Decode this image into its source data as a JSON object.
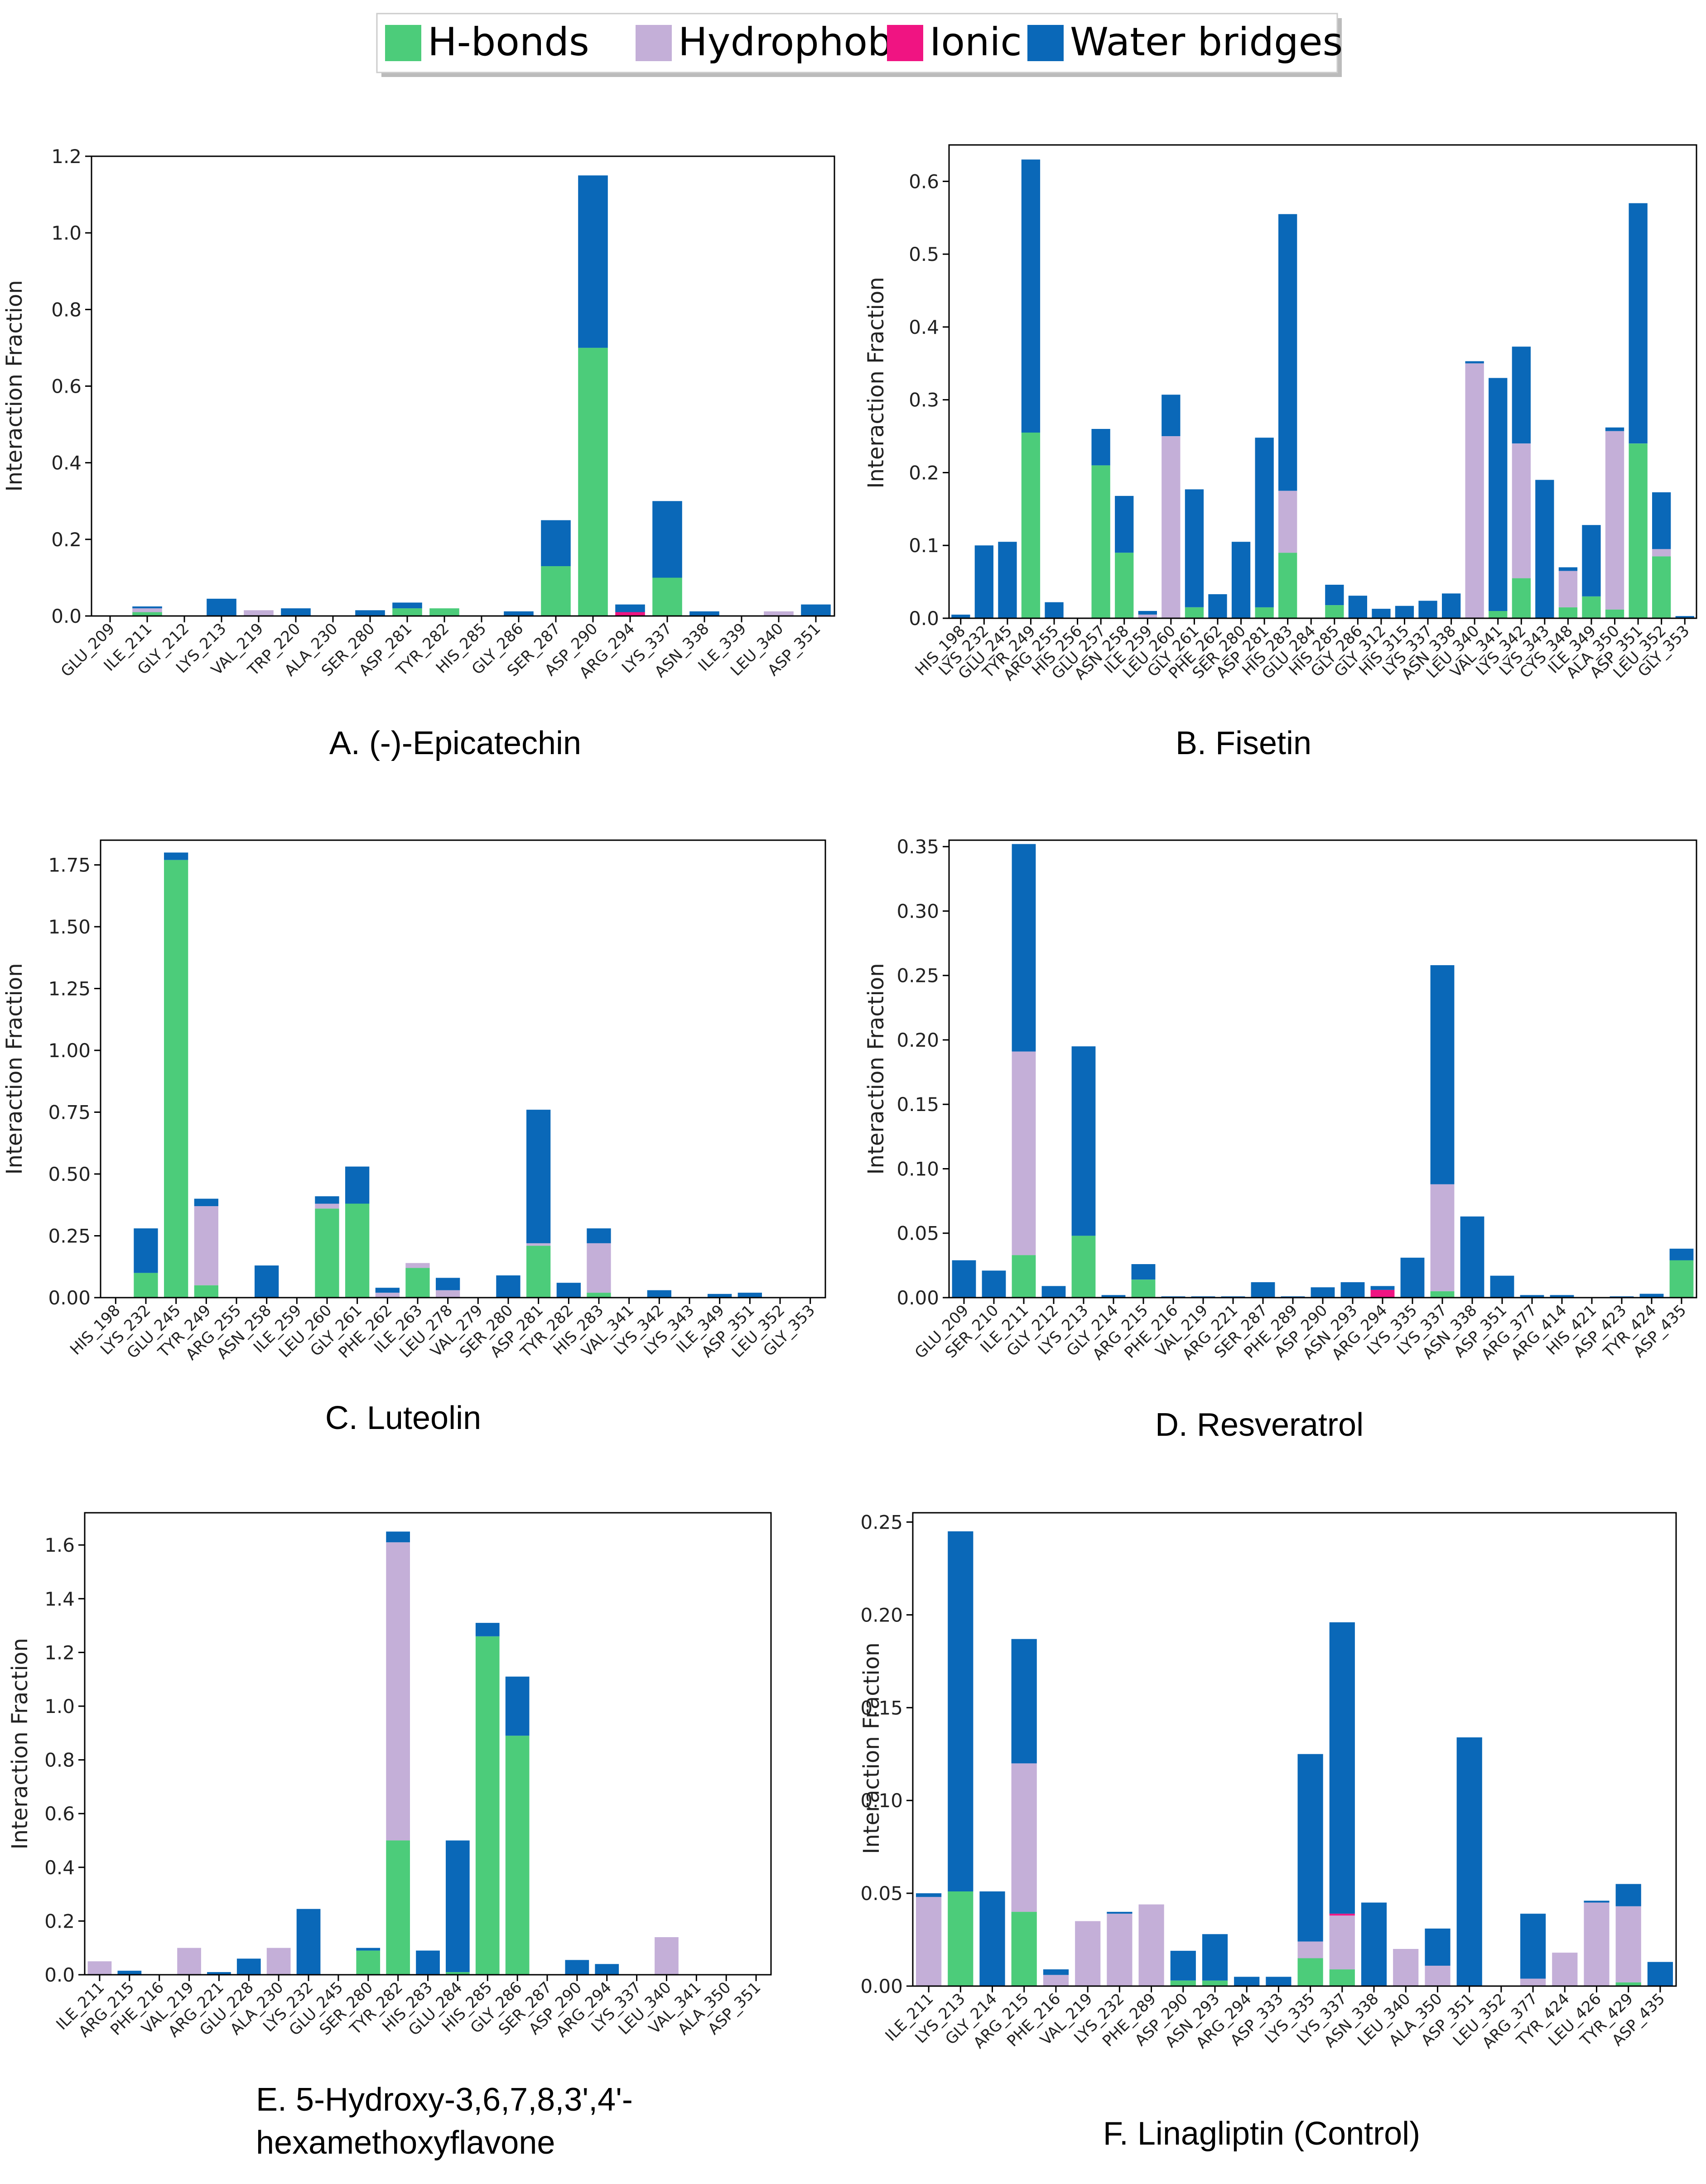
{
  "legend": {
    "items": [
      {
        "label": "H-bonds",
        "color": "#4ccc7a"
      },
      {
        "label": "Hydrophobic",
        "color": "#c4afd8"
      },
      {
        "label": "Ionic",
        "color": "#f01482"
      },
      {
        "label": "Water bridges",
        "color": "#0a68b8"
      }
    ]
  },
  "chart_data": [
    {
      "type": "bar",
      "stacked": true,
      "caption": [
        "A. (-)-Epicatechin"
      ],
      "ylabel": "Interaction Fraction",
      "ylim": [
        0,
        1.2
      ],
      "yticks": [
        "0.0",
        "0.2",
        "0.4",
        "0.6",
        "0.8",
        "1.0",
        "1.2"
      ],
      "categories": [
        "GLU_209",
        "ILE_211",
        "GLY_212",
        "LYS_213",
        "VAL_219",
        "TRP_220",
        "ALA_230",
        "SER_280",
        "ASP_281",
        "TYR_282",
        "HIS_285",
        "GLY_286",
        "SER_287",
        "ASP_290",
        "ARG_294",
        "LYS_337",
        "ASN_338",
        "ILE_339",
        "LEU_340",
        "ASP_351"
      ],
      "series": [
        {
          "name": "H-bonds",
          "values": [
            0,
            0.01,
            0,
            0,
            0,
            0,
            0,
            0,
            0.02,
            0.02,
            0,
            0,
            0.13,
            0.7,
            0,
            0.1,
            0,
            0,
            0,
            0
          ]
        },
        {
          "name": "Hydrophobic",
          "values": [
            0,
            0.01,
            0,
            0,
            0.015,
            0,
            0,
            0,
            0,
            0,
            0,
            0,
            0,
            0,
            0,
            0,
            0,
            0,
            0.012,
            0
          ]
        },
        {
          "name": "Ionic",
          "values": [
            0,
            0,
            0,
            0,
            0,
            0,
            0,
            0,
            0,
            0,
            0,
            0,
            0,
            0,
            0.01,
            0,
            0,
            0,
            0,
            0
          ]
        },
        {
          "name": "Water bridges",
          "values": [
            0,
            0.005,
            0,
            0.045,
            0,
            0.02,
            0,
            0.015,
            0.015,
            0,
            0,
            0.012,
            0.12,
            0.45,
            0.02,
            0.2,
            0.012,
            0,
            0,
            0.03
          ]
        }
      ]
    },
    {
      "type": "bar",
      "stacked": true,
      "caption": [
        "B. Fisetin"
      ],
      "ylabel": "Interaction Fraction",
      "ylim": [
        0,
        0.65
      ],
      "yticks": [
        "0.0",
        "0.1",
        "0.2",
        "0.3",
        "0.4",
        "0.5",
        "0.6"
      ],
      "categories": [
        "HIS_198",
        "LYS_232",
        "GLU_245",
        "TYR_249",
        "ARG_255",
        "HIS_256",
        "GLU_257",
        "ASN_258",
        "ILE_259",
        "LEU_260",
        "GLY_261",
        "PHE_262",
        "SER_280",
        "ASP_281",
        "HIS_283",
        "GLU_284",
        "HIS_285",
        "GLY_286",
        "GLY_312",
        "HIS_315",
        "LYS_337",
        "ASN_338",
        "LEU_340",
        "VAL_341",
        "LYS_342",
        "LYS_343",
        "CYS_348",
        "ILE_349",
        "ALA_350",
        "ASP_351",
        "LEU_352",
        "GLY_353"
      ],
      "series": [
        {
          "name": "H-bonds",
          "values": [
            0,
            0,
            0,
            0.255,
            0,
            0,
            0.21,
            0.09,
            0,
            0,
            0.015,
            0,
            0,
            0.015,
            0.09,
            0,
            0.018,
            0,
            0,
            0,
            0,
            0,
            0,
            0.01,
            0.055,
            0,
            0.015,
            0.03,
            0.012,
            0.24,
            0.085,
            0
          ]
        },
        {
          "name": "Hydrophobic",
          "values": [
            0,
            0,
            0,
            0,
            0,
            0,
            0,
            0,
            0.005,
            0.25,
            0,
            0,
            0,
            0,
            0.085,
            0,
            0,
            0,
            0,
            0,
            0,
            0,
            0.35,
            0,
            0.185,
            0,
            0.05,
            0,
            0.245,
            0,
            0.01,
            0
          ]
        },
        {
          "name": "Ionic",
          "values": [
            0,
            0,
            0,
            0,
            0,
            0,
            0,
            0,
            0,
            0,
            0,
            0,
            0,
            0,
            0,
            0,
            0,
            0,
            0,
            0,
            0,
            0,
            0,
            0,
            0,
            0,
            0,
            0,
            0,
            0,
            0,
            0
          ]
        },
        {
          "name": "Water bridges",
          "values": [
            0.005,
            0.1,
            0.105,
            0.375,
            0.022,
            0,
            0.05,
            0.078,
            0.005,
            0.057,
            0.162,
            0.033,
            0.105,
            0.233,
            0.38,
            0,
            0.028,
            0.031,
            0.013,
            0.017,
            0.024,
            0.034,
            0.003,
            0.32,
            0.133,
            0.19,
            0.005,
            0.098,
            0.005,
            0.33,
            0.078,
            0.003
          ]
        }
      ]
    },
    {
      "type": "bar",
      "stacked": true,
      "caption": [
        "C. Luteolin"
      ],
      "ylabel": "Interaction Fraction",
      "ylim": [
        0,
        1.85
      ],
      "yticks": [
        "0.00",
        "0.25",
        "0.50",
        "0.75",
        "1.00",
        "1.25",
        "1.50",
        "1.75"
      ],
      "categories": [
        "HIS_198",
        "LYS_232",
        "GLU_245",
        "TYR_249",
        "ARG_255",
        "ASN_258",
        "ILE_259",
        "LEU_260",
        "GLY_261",
        "PHE_262",
        "ILE_263",
        "LEU_278",
        "VAL_279",
        "SER_280",
        "ASP_281",
        "TYR_282",
        "HIS_283",
        "VAL_341",
        "LYS_342",
        "LYS_343",
        "ILE_349",
        "ASP_351",
        "LEU_352",
        "GLY_353"
      ],
      "series": [
        {
          "name": "H-bonds",
          "values": [
            0,
            0.1,
            1.77,
            0.05,
            0,
            0,
            0,
            0.36,
            0.38,
            0,
            0.12,
            0,
            0,
            0,
            0.21,
            0,
            0.02,
            0,
            0,
            0,
            0,
            0,
            0,
            0
          ]
        },
        {
          "name": "Hydrophobic",
          "values": [
            0,
            0,
            0,
            0.32,
            0,
            0,
            0,
            0.02,
            0,
            0.02,
            0.02,
            0.03,
            0,
            0,
            0.01,
            0,
            0.2,
            0,
            0,
            0,
            0,
            0,
            0,
            0
          ]
        },
        {
          "name": "Ionic",
          "values": [
            0,
            0,
            0,
            0,
            0,
            0,
            0,
            0,
            0,
            0,
            0,
            0,
            0,
            0,
            0,
            0,
            0,
            0,
            0,
            0,
            0,
            0,
            0,
            0
          ]
        },
        {
          "name": "Water bridges",
          "values": [
            0,
            0.18,
            0.03,
            0.03,
            0,
            0.13,
            0,
            0.03,
            0.15,
            0.02,
            0,
            0.05,
            0,
            0.09,
            0.54,
            0.06,
            0.06,
            0,
            0.03,
            0,
            0.015,
            0.02,
            0,
            0
          ]
        }
      ]
    },
    {
      "type": "bar",
      "stacked": true,
      "caption": [
        "D. Resveratrol"
      ],
      "ylabel": "Interaction Fraction",
      "ylim": [
        0,
        0.355
      ],
      "yticks": [
        "0.00",
        "0.05",
        "0.10",
        "0.15",
        "0.20",
        "0.25",
        "0.30",
        "0.35"
      ],
      "categories": [
        "GLU_209",
        "SER_210",
        "ILE_211",
        "GLY_212",
        "LYS_213",
        "GLY_214",
        "ARG_215",
        "PHE_216",
        "VAL_219",
        "ARG_221",
        "SER_287",
        "PHE_289",
        "ASP_290",
        "ASN_293",
        "ARG_294",
        "LYS_335",
        "LYS_337",
        "ASN_338",
        "ASP_351",
        "ARG_377",
        "ARG_414",
        "HIS_421",
        "ASP_423",
        "TYR_424",
        "ASP_435"
      ],
      "series": [
        {
          "name": "H-bonds",
          "values": [
            0,
            0,
            0.033,
            0,
            0.048,
            0,
            0.014,
            0,
            0,
            0,
            0,
            0,
            0,
            0,
            0,
            0,
            0.005,
            0,
            0,
            0,
            0,
            0,
            0,
            0,
            0.029
          ]
        },
        {
          "name": "Hydrophobic",
          "values": [
            0,
            0,
            0.158,
            0,
            0,
            0,
            0,
            0,
            0,
            0,
            0,
            0,
            0,
            0,
            0,
            0,
            0.083,
            0,
            0,
            0,
            0,
            0,
            0,
            0,
            0
          ]
        },
        {
          "name": "Ionic",
          "values": [
            0,
            0,
            0,
            0,
            0,
            0,
            0,
            0,
            0,
            0,
            0,
            0,
            0,
            0,
            0.006,
            0,
            0,
            0,
            0,
            0,
            0,
            0,
            0,
            0,
            0
          ]
        },
        {
          "name": "Water bridges",
          "values": [
            0.029,
            0.021,
            0.161,
            0.009,
            0.147,
            0.002,
            0.012,
            0.001,
            0.001,
            0.001,
            0.012,
            0.001,
            0.008,
            0.012,
            0.003,
            0.031,
            0.17,
            0.063,
            0.017,
            0.002,
            0.002,
            0,
            0.001,
            0.003,
            0.009
          ]
        }
      ]
    },
    {
      "type": "bar",
      "stacked": true,
      "caption": [
        "E. 5-Hydroxy-3,6,7,8,3',4'-",
        "hexamethoxyflavone"
      ],
      "ylabel": "Interaction Fraction",
      "ylim": [
        0,
        1.72
      ],
      "yticks": [
        "0.0",
        "0.2",
        "0.4",
        "0.6",
        "0.8",
        "1.0",
        "1.2",
        "1.4",
        "1.6"
      ],
      "categories": [
        "ILE_211",
        "ARG_215",
        "PHE_216",
        "VAL_219",
        "ARG_221",
        "GLU_228",
        "ALA_230",
        "LYS_232",
        "GLU_245",
        "SER_280",
        "TYR_282",
        "HIS_283",
        "GLU_284",
        "HIS_285",
        "GLY_286",
        "SER_287",
        "ASP_290",
        "ARG_294",
        "LYS_337",
        "LEU_340",
        "VAL_341",
        "ALA_350",
        "ASP_351"
      ],
      "series": [
        {
          "name": "H-bonds",
          "values": [
            0,
            0,
            0,
            0,
            0,
            0,
            0,
            0,
            0,
            0.09,
            0.5,
            0,
            0.01,
            1.26,
            0.89,
            0,
            0,
            0,
            0,
            0,
            0,
            0,
            0
          ]
        },
        {
          "name": "Hydrophobic",
          "values": [
            0.05,
            0,
            0,
            0.1,
            0,
            0,
            0.1,
            0,
            0,
            0,
            1.11,
            0,
            0,
            0,
            0,
            0,
            0,
            0,
            0,
            0.14,
            0,
            0,
            0
          ]
        },
        {
          "name": "Ionic",
          "values": [
            0,
            0,
            0,
            0,
            0,
            0,
            0,
            0,
            0,
            0,
            0,
            0,
            0,
            0,
            0,
            0,
            0,
            0,
            0,
            0,
            0,
            0,
            0
          ]
        },
        {
          "name": "Water bridges",
          "values": [
            0,
            0.015,
            0,
            0,
            0.01,
            0.06,
            0,
            0.245,
            0,
            0.01,
            0.04,
            0.09,
            0.49,
            0.05,
            0.22,
            0,
            0.055,
            0.04,
            0,
            0,
            0,
            0,
            0
          ]
        }
      ]
    },
    {
      "type": "bar",
      "stacked": true,
      "caption": [
        "F. Linagliptin (Control)"
      ],
      "ylabel": "Interaction Fraction",
      "ylim": [
        0,
        0.255
      ],
      "yticks": [
        "0.00",
        "0.05",
        "0.10",
        "0.15",
        "0.20",
        "0.25"
      ],
      "categories": [
        "ILE_211",
        "LYS_213",
        "GLY_214",
        "ARG_215",
        "PHE_216",
        "VAL_219",
        "LYS_232",
        "PHE_289",
        "ASP_290",
        "ASN_293",
        "ARG_294",
        "ASP_333",
        "LYS_335",
        "LYS_337",
        "ASN_338",
        "LEU_340",
        "ALA_350",
        "ASP_351",
        "LEU_352",
        "ARG_377",
        "TYR_424",
        "LEU_426",
        "TYR_429",
        "ASP_435"
      ],
      "series": [
        {
          "name": "H-bonds",
          "values": [
            0,
            0.051,
            0,
            0.04,
            0,
            0,
            0,
            0,
            0.003,
            0.003,
            0,
            0,
            0.015,
            0.009,
            0,
            0,
            0,
            0,
            0,
            0,
            0,
            0,
            0.002,
            0
          ]
        },
        {
          "name": "Hydrophobic",
          "values": [
            0.048,
            0,
            0,
            0.08,
            0.006,
            0.035,
            0.039,
            0.044,
            0,
            0,
            0,
            0,
            0.009,
            0.029,
            0,
            0.02,
            0.011,
            0,
            0,
            0.004,
            0.018,
            0.045,
            0.041,
            0
          ]
        },
        {
          "name": "Ionic",
          "values": [
            0,
            0,
            0,
            0,
            0,
            0,
            0,
            0,
            0,
            0,
            0,
            0,
            0,
            0.001,
            0,
            0,
            0,
            0,
            0,
            0,
            0,
            0,
            0,
            0
          ]
        },
        {
          "name": "Water bridges",
          "values": [
            0.002,
            0.194,
            0.051,
            0.067,
            0.003,
            0,
            0.001,
            0,
            0.016,
            0.025,
            0.005,
            0.005,
            0.101,
            0.157,
            0.045,
            0,
            0.02,
            0.134,
            0,
            0.035,
            0,
            0.001,
            0.012,
            0.013
          ]
        }
      ]
    }
  ]
}
